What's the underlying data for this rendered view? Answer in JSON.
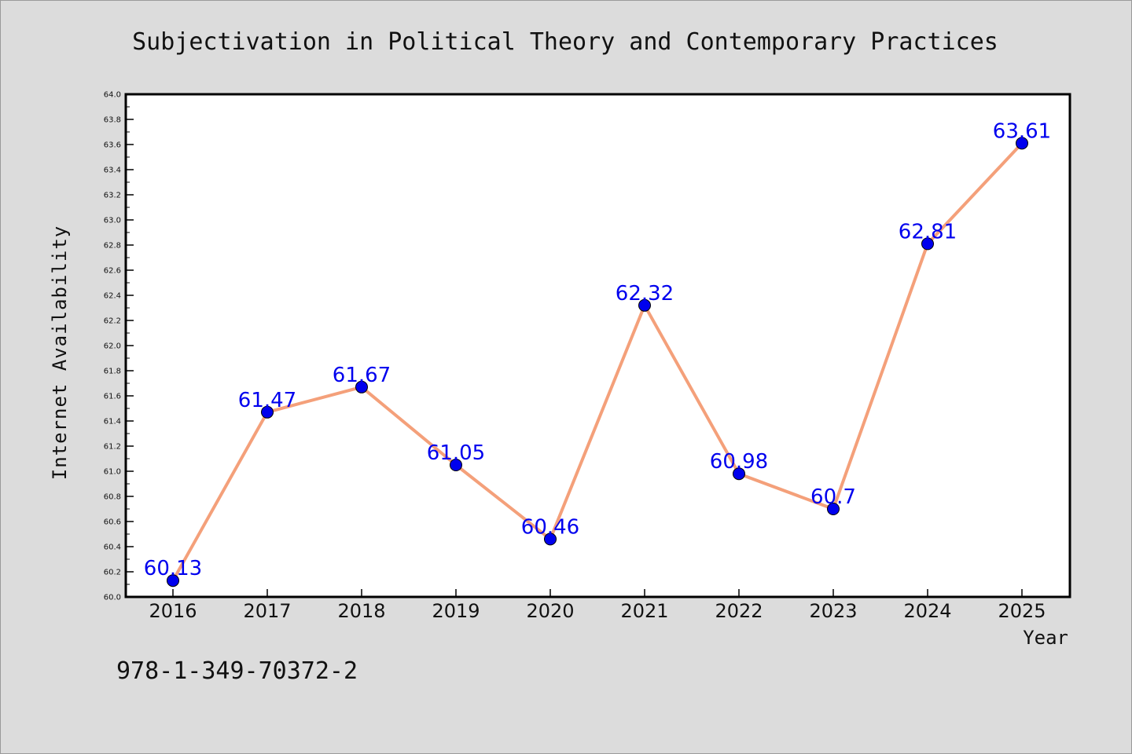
{
  "chart_data": {
    "type": "line",
    "title": "Subjectivation in Political Theory and Contemporary Practices",
    "xlabel": "Year",
    "ylabel": "Internet Availability",
    "categories": [
      "2016",
      "2017",
      "2018",
      "2019",
      "2020",
      "2021",
      "2022",
      "2023",
      "2024",
      "2025"
    ],
    "series": [
      {
        "values": [
          60.13,
          61.47,
          61.67,
          61.05,
          60.46,
          62.32,
          60.98,
          60.7,
          62.81,
          63.61
        ],
        "data_labels": [
          "60.13",
          "61.47",
          "61.67",
          "61.05",
          "60.46",
          "62.32",
          "60.98",
          "60.7",
          "62.81",
          "63.61"
        ]
      }
    ],
    "ylim": [
      60.0,
      64.0
    ],
    "yticks": [
      "60.0",
      "60.2",
      "60.4",
      "60.6",
      "60.8",
      "61.0",
      "61.2",
      "61.4",
      "61.6",
      "61.8",
      "62.0",
      "62.2",
      "62.4",
      "62.6",
      "62.8",
      "63.0",
      "63.2",
      "63.4",
      "63.6",
      "63.8",
      "64.0"
    ],
    "grid": false,
    "legend": "none",
    "line_color": "#f4a07a",
    "marker_color": "#0000ee",
    "label_color": "#0000ee",
    "plot_background": "#ffffff",
    "page_background": "#dcdcdc"
  },
  "footer": {
    "isbn": "978-1-349-70372-2"
  }
}
